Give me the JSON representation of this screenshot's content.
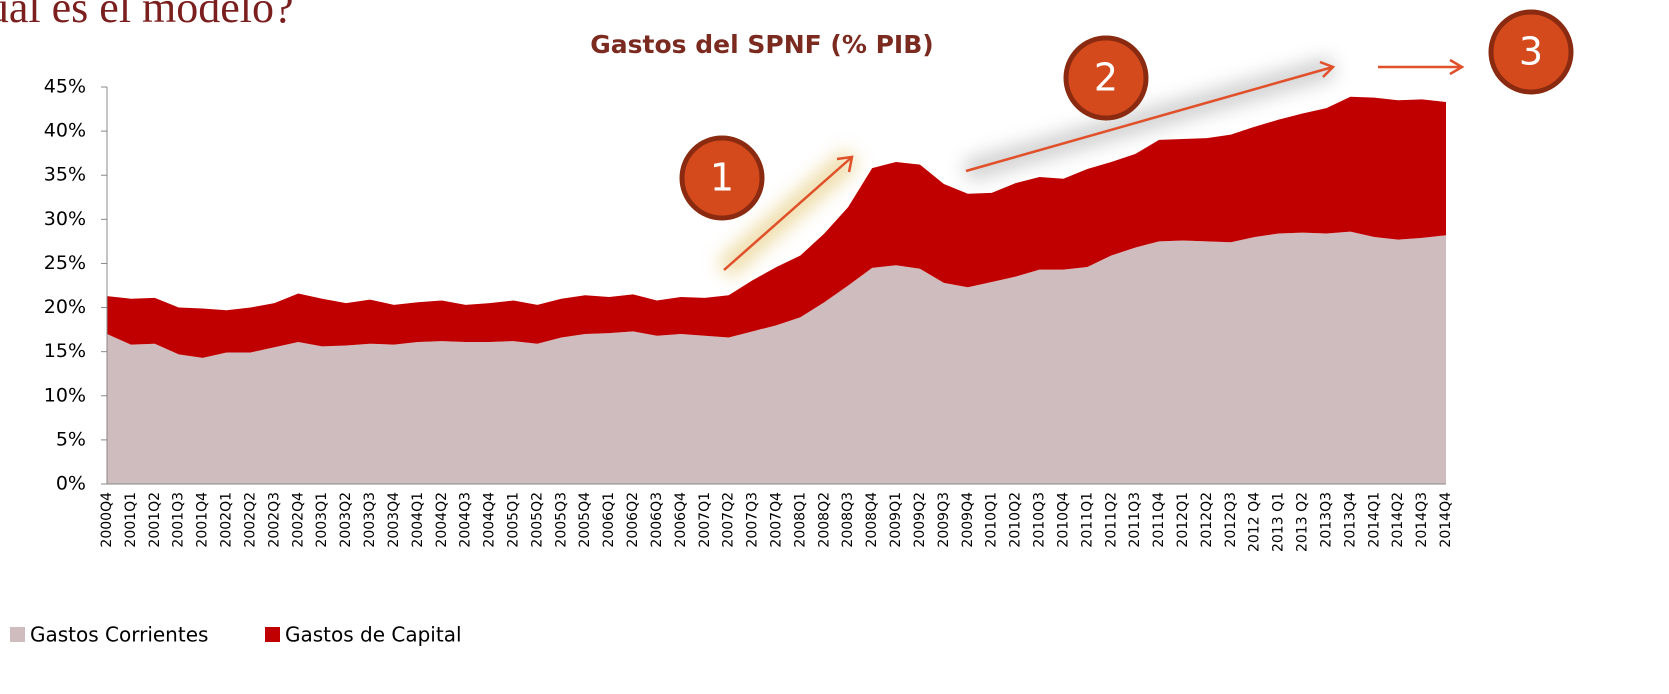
{
  "heading": "¿Cuál es el modelo?",
  "chart_data": {
    "type": "stacked_area",
    "title": "Gastos del SPNF (% PIB)",
    "categories": [
      "2000Q4",
      "2001Q1",
      "2001Q2",
      "2001Q3",
      "2001Q4",
      "2002Q1",
      "2002Q2",
      "2002Q3",
      "2002Q4",
      "2003Q1",
      "2003Q2",
      "2003Q3",
      "2003Q4",
      "2004Q1",
      "2004Q2",
      "2004Q3",
      "2004Q4",
      "2005Q1",
      "2005Q2",
      "2005Q3",
      "2005Q4",
      "2006Q1",
      "2006Q2",
      "2006Q3",
      "2006Q4",
      "2007Q1",
      "2007Q2",
      "2007Q3",
      "2007Q4",
      "2008Q1",
      "2008Q2",
      "2008Q3",
      "2008Q4",
      "2009Q1",
      "2009Q2",
      "2009Q3",
      "2009Q4",
      "2010Q1",
      "2010Q2",
      "2010Q3",
      "2010Q4",
      "2011Q1",
      "2011Q2",
      "2011Q3",
      "2011Q4",
      "2012Q1",
      "2012Q2",
      "2012Q3",
      "2012 Q4",
      "2013 Q1",
      "2013 Q2",
      "2013Q3",
      "2013Q4",
      "2014Q1",
      "2014Q2",
      "2014Q3",
      "2014Q4"
    ],
    "series": [
      {
        "name": "Gastos Corrientes",
        "color": "#cfbcbe",
        "values": [
          17.0,
          15.8,
          15.9,
          14.7,
          14.3,
          14.9,
          14.9,
          15.5,
          16.1,
          15.6,
          15.7,
          15.9,
          15.8,
          16.1,
          16.2,
          16.1,
          16.1,
          16.2,
          15.9,
          16.6,
          17.0,
          17.1,
          17.3,
          16.8,
          17.0,
          16.8,
          16.6,
          17.3,
          18.0,
          18.9,
          20.6,
          22.5,
          24.5,
          24.8,
          24.4,
          22.8,
          22.3,
          22.9,
          23.5,
          24.3,
          24.3,
          24.6,
          25.9,
          26.8,
          27.5,
          27.6,
          27.5,
          27.4,
          28.0,
          28.4,
          28.5,
          28.4,
          28.6,
          28.0,
          27.7,
          27.9,
          28.2
        ]
      },
      {
        "name": "Gastos de Capital",
        "color": "#c00000",
        "values": [
          4.3,
          5.2,
          5.2,
          5.3,
          5.6,
          4.8,
          5.1,
          5.0,
          5.5,
          5.4,
          4.8,
          5.0,
          4.5,
          4.5,
          4.6,
          4.2,
          4.4,
          4.6,
          4.4,
          4.4,
          4.4,
          4.1,
          4.2,
          4.0,
          4.2,
          4.3,
          4.8,
          5.8,
          6.6,
          7.0,
          7.8,
          8.9,
          11.3,
          11.7,
          11.8,
          11.2,
          10.6,
          10.1,
          10.6,
          10.5,
          10.3,
          11.1,
          10.6,
          10.6,
          11.5,
          11.5,
          11.7,
          12.2,
          12.5,
          12.9,
          13.5,
          14.2,
          15.3,
          15.8,
          15.8,
          15.7,
          15.1
        ]
      }
    ],
    "ylim": [
      0,
      45
    ],
    "yticks": [
      {
        "value": 0,
        "label": "0%"
      },
      {
        "value": 5,
        "label": "5%"
      },
      {
        "value": 10,
        "label": "10%"
      },
      {
        "value": 15,
        "label": "15%"
      },
      {
        "value": 20,
        "label": "20%"
      },
      {
        "value": 25,
        "label": "25%"
      },
      {
        "value": 30,
        "label": "30%"
      },
      {
        "value": 35,
        "label": "35%"
      },
      {
        "value": 40,
        "label": "40%"
      },
      {
        "value": 45,
        "label": "45%"
      }
    ],
    "legend": "bottom-left",
    "annotations": [
      "1",
      "2",
      "3"
    ]
  }
}
